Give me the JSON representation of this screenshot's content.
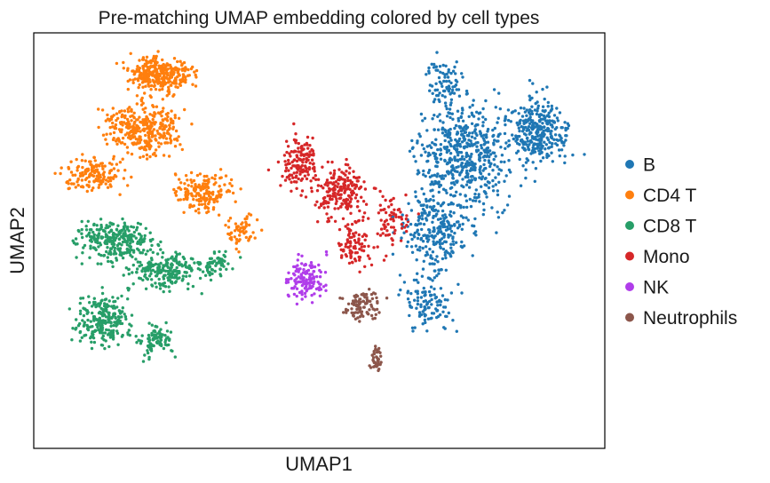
{
  "chart_data": {
    "type": "scatter",
    "title": "Pre-matching UMAP embedding colored by cell types",
    "xlabel": "UMAP1",
    "ylabel": "UMAP2",
    "xlim": [
      -8,
      22
    ],
    "ylim": [
      -6,
      16
    ],
    "grid": false,
    "ticks": false,
    "legend_position": "right",
    "series": [
      {
        "name": "B",
        "color": "#1f77b4",
        "clusters": [
          {
            "cx": 14.5,
            "cy": 9.6,
            "sx": 2.2,
            "sy": 2.4,
            "n": 520
          },
          {
            "cx": 18.5,
            "cy": 10.8,
            "sx": 1.4,
            "sy": 1.6,
            "n": 330
          },
          {
            "cx": 13.2,
            "cy": 5.6,
            "sx": 1.6,
            "sy": 2.0,
            "n": 260
          },
          {
            "cx": 12.8,
            "cy": 1.8,
            "sx": 1.2,
            "sy": 1.4,
            "n": 120
          },
          {
            "cx": 13.6,
            "cy": 13.4,
            "sx": 0.9,
            "sy": 1.0,
            "n": 70
          }
        ]
      },
      {
        "name": "CD4 T",
        "color": "#ff7f0e",
        "clusters": [
          {
            "cx": -1.3,
            "cy": 13.8,
            "sx": 1.5,
            "sy": 0.8,
            "n": 330
          },
          {
            "cx": -2.2,
            "cy": 10.9,
            "sx": 1.7,
            "sy": 1.2,
            "n": 340
          },
          {
            "cx": -4.8,
            "cy": 8.5,
            "sx": 1.4,
            "sy": 0.8,
            "n": 150
          },
          {
            "cx": 0.9,
            "cy": 7.6,
            "sx": 1.4,
            "sy": 1.0,
            "n": 170
          },
          {
            "cx": 3.0,
            "cy": 5.6,
            "sx": 0.7,
            "sy": 0.8,
            "n": 60
          }
        ]
      },
      {
        "name": "CD8 T",
        "color": "#279e68",
        "clusters": [
          {
            "cx": -3.7,
            "cy": 5.0,
            "sx": 1.7,
            "sy": 1.0,
            "n": 280
          },
          {
            "cx": -1.0,
            "cy": 3.4,
            "sx": 1.7,
            "sy": 0.9,
            "n": 220
          },
          {
            "cx": -4.3,
            "cy": 0.8,
            "sx": 1.2,
            "sy": 1.2,
            "n": 240
          },
          {
            "cx": -1.6,
            "cy": -0.2,
            "sx": 0.8,
            "sy": 0.8,
            "n": 90
          },
          {
            "cx": 1.6,
            "cy": 3.8,
            "sx": 0.8,
            "sy": 0.6,
            "n": 60
          }
        ]
      },
      {
        "name": "Mono",
        "color": "#d62728",
        "clusters": [
          {
            "cx": 6.0,
            "cy": 9.1,
            "sx": 1.0,
            "sy": 1.2,
            "n": 150
          },
          {
            "cx": 8.2,
            "cy": 7.6,
            "sx": 1.2,
            "sy": 1.4,
            "n": 190
          },
          {
            "cx": 8.8,
            "cy": 4.8,
            "sx": 0.9,
            "sy": 1.0,
            "n": 90
          },
          {
            "cx": 10.8,
            "cy": 6.0,
            "sx": 0.8,
            "sy": 1.4,
            "n": 70
          }
        ]
      },
      {
        "name": "NK",
        "color": "#b03dea",
        "clusters": [
          {
            "cx": 6.3,
            "cy": 3.0,
            "sx": 0.9,
            "sy": 1.0,
            "n": 130
          }
        ]
      },
      {
        "name": "Neutrophils",
        "color": "#8c564b",
        "clusters": [
          {
            "cx": 9.3,
            "cy": 1.6,
            "sx": 0.8,
            "sy": 0.8,
            "n": 90
          },
          {
            "cx": 10.0,
            "cy": -1.2,
            "sx": 0.25,
            "sy": 0.8,
            "n": 40
          }
        ]
      }
    ]
  }
}
